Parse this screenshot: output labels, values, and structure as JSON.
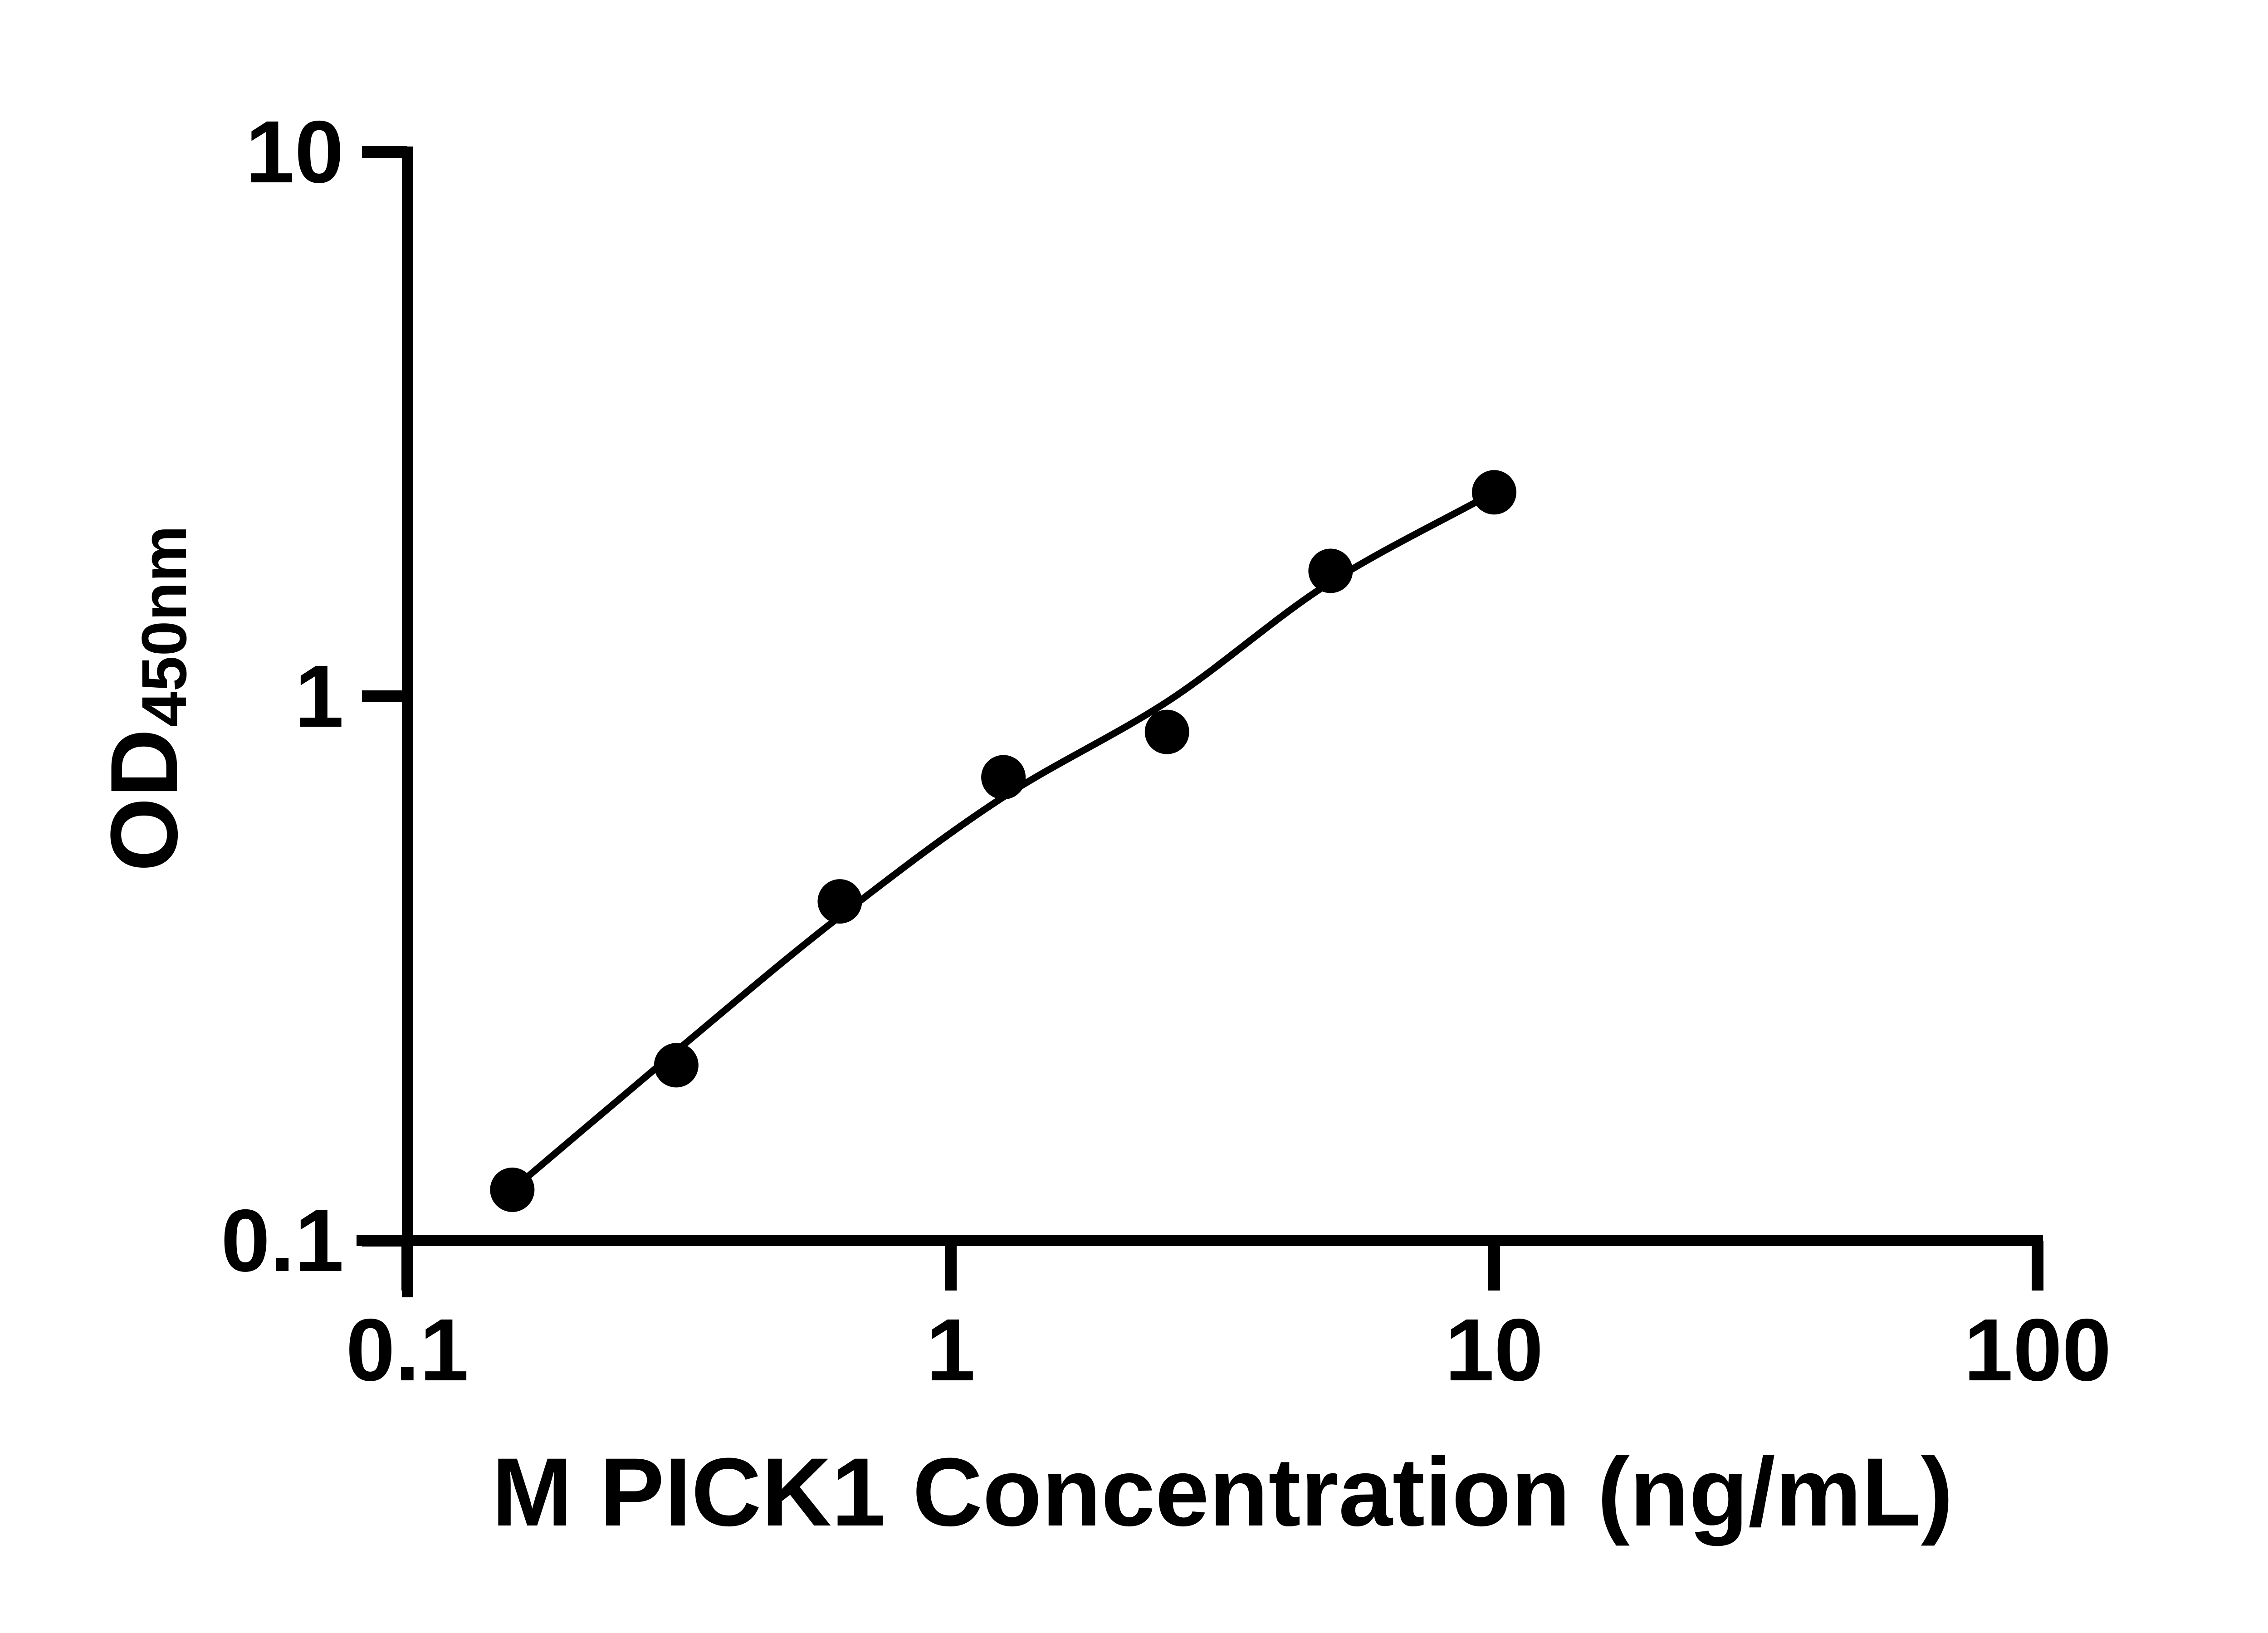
{
  "figure": {
    "background": "#ffffff",
    "ink": "#000000"
  },
  "chart_data": {
    "type": "scatter",
    "title": "",
    "xlabel": "M PICK1 Concentration (ng/mL)",
    "ylabel_main": "OD",
    "ylabel_sub": "450nm",
    "x_scale": "log",
    "y_scale": "log",
    "xlim": [
      0.1,
      100
    ],
    "ylim": [
      0.1,
      10
    ],
    "grid": false,
    "legend": "none",
    "x_ticks": {
      "values": [
        0.1,
        1,
        10,
        100
      ],
      "labels": [
        "0.1",
        "1",
        "10",
        "100"
      ]
    },
    "y_ticks": {
      "values": [
        0.1,
        1,
        10
      ],
      "labels": [
        "0.1",
        "1",
        "10"
      ]
    },
    "series": [
      {
        "name": "standard-points",
        "type": "scatter",
        "marker": "filled-circle",
        "x": [
          0.156,
          0.3125,
          0.625,
          1.25,
          2.5,
          5,
          10
        ],
        "y": [
          0.124,
          0.21,
          0.42,
          0.71,
          0.86,
          1.7,
          2.37
        ]
      },
      {
        "name": "fitted-curve",
        "type": "smooth-line",
        "x": [
          0.156,
          0.3125,
          0.625,
          1.25,
          2.5,
          5,
          10
        ],
        "y": [
          0.124,
          0.223,
          0.394,
          0.653,
          0.977,
          1.62,
          2.37
        ]
      }
    ]
  }
}
